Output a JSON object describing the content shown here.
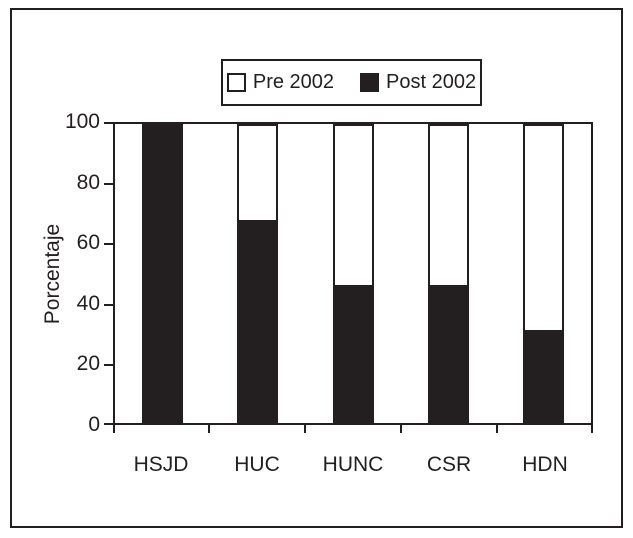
{
  "figure": {
    "ylabel": "Porcentaje",
    "legend": [
      {
        "label": "Pre 2002",
        "color": "#ffffff"
      },
      {
        "label": "Post 2002",
        "color": "#231f20"
      }
    ],
    "ink_color": "#231f20",
    "background_color": "#ffffff"
  },
  "chart_data": {
    "type": "bar",
    "stacked": true,
    "title": "",
    "xlabel": "",
    "ylabel": "Porcentaje",
    "categories": [
      "HSJD",
      "HUC",
      "HUNC",
      "CSR",
      "HDN"
    ],
    "series": [
      {
        "name": "Post 2002",
        "color": "#231f20",
        "values": [
          100,
          68,
          46,
          46,
          31
        ]
      },
      {
        "name": "Pre 2002",
        "color": "#ffffff",
        "values": [
          0,
          32,
          54,
          54,
          69
        ]
      }
    ],
    "ylim": [
      0,
      100
    ],
    "yticks": [
      0,
      20,
      40,
      60,
      80,
      100
    ],
    "grid": false,
    "legend_position": "top-center"
  }
}
